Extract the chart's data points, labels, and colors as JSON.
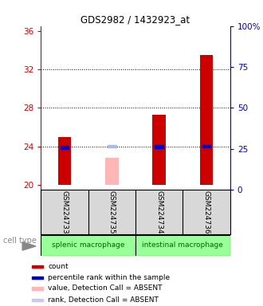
{
  "title": "GDS2982 / 1432923_at",
  "samples": [
    "GSM224733",
    "GSM224735",
    "GSM224734",
    "GSM224736"
  ],
  "cell_types": [
    {
      "name": "splenic macrophage",
      "span": [
        0,
        2
      ],
      "color": "#99ff99"
    },
    {
      "name": "intestinal macrophage",
      "span": [
        2,
        4
      ],
      "color": "#99ff99"
    }
  ],
  "ylim_left": [
    19.5,
    36.5
  ],
  "ylim_right": [
    0,
    100
  ],
  "yticks_left": [
    20,
    24,
    28,
    32,
    36
  ],
  "yticks_right": [
    0,
    25,
    50,
    75,
    100
  ],
  "ytick_labels_right": [
    "0",
    "25",
    "50",
    "75",
    "100%"
  ],
  "bar_values": [
    25.0,
    22.8,
    27.3,
    33.5
  ],
  "bar_colors": [
    "#cc0000",
    "#ffb6b6",
    "#cc0000",
    "#cc0000"
  ],
  "rank_values": [
    26.0,
    26.5,
    26.2,
    26.6
  ],
  "rank_colors": [
    "#0000cc",
    "#b0b8e8",
    "#0000cc",
    "#0000cc"
  ],
  "bar_bottom": 20,
  "absent_flags": [
    false,
    true,
    false,
    false
  ],
  "legend_items": [
    {
      "color": "#cc0000",
      "label": "count"
    },
    {
      "color": "#0000cc",
      "label": "percentile rank within the sample"
    },
    {
      "color": "#ffb6b6",
      "label": "value, Detection Call = ABSENT"
    },
    {
      "color": "#c8c8f0",
      "label": "rank, Detection Call = ABSENT"
    }
  ],
  "left_axis_color": "#cc0000",
  "right_axis_color": "#0000bb",
  "cell_type_label": "cell type",
  "sample_bg_color": "#d8d8d8",
  "plot_bg": "#ffffff",
  "bar_width": 0.28
}
